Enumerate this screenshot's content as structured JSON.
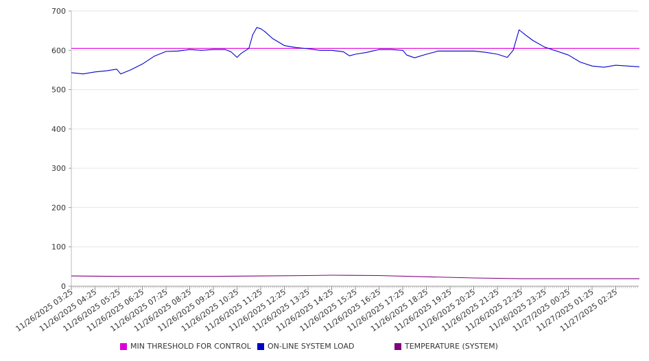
{
  "chart_data": {
    "type": "line",
    "ylim": [
      0,
      700
    ],
    "yticks": [
      0,
      100,
      200,
      300,
      400,
      500,
      600,
      700
    ],
    "grid": true,
    "legend_position": "bottom",
    "xticks": [
      "11/26/2025 03:25",
      "11/26/2025 04:25",
      "11/26/2025 05:25",
      "11/26/2025 06:25",
      "11/26/2025 07:25",
      "11/26/2025 08:25",
      "11/26/2025 09:25",
      "11/26/2025 10:25",
      "11/26/2025 11:25",
      "11/26/2025 12:25",
      "11/26/2025 13:25",
      "11/26/2025 14:25",
      "11/26/2025 15:25",
      "11/26/2025 16:25",
      "11/26/2025 17:25",
      "11/26/2025 18:25",
      "11/26/2025 19:25",
      "11/26/2025 20:25",
      "11/26/2025 21:25",
      "11/26/2025 22:25",
      "11/26/2025 23:25",
      "11/27/2025 00:25",
      "11/27/2025 01:25",
      "11/27/2025 02:25"
    ],
    "series": [
      {
        "name": "MIN THRESHOLD FOR CONTROL",
        "color": "#dd00dd",
        "x": [
          "11/26/2025 03:25",
          "11/27/2025 03:25"
        ],
        "values": [
          605,
          605
        ]
      },
      {
        "name": "ON-LINE SYSTEM LOAD",
        "color": "#0000cc",
        "x": [
          "11/26/2025 03:25",
          "11/26/2025 03:55",
          "11/26/2025 04:25",
          "11/26/2025 04:55",
          "11/26/2025 05:20",
          "11/26/2025 05:30",
          "11/26/2025 05:55",
          "11/26/2025 06:25",
          "11/26/2025 06:55",
          "11/26/2025 07:25",
          "11/26/2025 07:55",
          "11/26/2025 08:25",
          "11/26/2025 08:55",
          "11/26/2025 09:25",
          "11/26/2025 09:55",
          "11/26/2025 10:10",
          "11/26/2025 10:25",
          "11/26/2025 10:35",
          "11/26/2025 10:55",
          "11/26/2025 11:05",
          "11/26/2025 11:15",
          "11/26/2025 11:25",
          "11/26/2025 11:35",
          "11/26/2025 11:55",
          "11/26/2025 12:25",
          "11/26/2025 12:55",
          "11/26/2025 13:25",
          "11/26/2025 13:55",
          "11/26/2025 14:25",
          "11/26/2025 14:55",
          "11/26/2025 15:10",
          "11/26/2025 15:25",
          "11/26/2025 15:55",
          "11/26/2025 16:25",
          "11/26/2025 16:55",
          "11/26/2025 17:25",
          "11/26/2025 17:35",
          "11/26/2025 17:55",
          "11/26/2025 18:25",
          "11/26/2025 18:55",
          "11/26/2025 19:25",
          "11/26/2025 19:55",
          "11/26/2025 20:25",
          "11/26/2025 20:55",
          "11/26/2025 21:25",
          "11/26/2025 21:50",
          "11/26/2025 22:05",
          "11/26/2025 22:20",
          "11/26/2025 22:35",
          "11/26/2025 22:55",
          "11/26/2025 23:25",
          "11/26/2025 23:55",
          "11/27/2025 00:25",
          "11/27/2025 00:55",
          "11/27/2025 01:25",
          "11/27/2025 01:55",
          "11/27/2025 02:25",
          "11/27/2025 02:55",
          "11/27/2025 03:25"
        ],
        "values": [
          543,
          540,
          545,
          548,
          552,
          540,
          550,
          565,
          585,
          597,
          598,
          602,
          600,
          602,
          602,
          596,
          582,
          592,
          605,
          640,
          658,
          655,
          648,
          630,
          612,
          607,
          604,
          600,
          600,
          596,
          586,
          590,
          595,
          602,
          602,
          600,
          588,
          581,
          590,
          598,
          598,
          598,
          598,
          595,
          590,
          582,
          600,
          652,
          640,
          625,
          608,
          598,
          588,
          570,
          560,
          557,
          562,
          560,
          558
        ]
      },
      {
        "name": "TEMPERATURE (SYSTEM)",
        "color": "#800080",
        "x": [
          "11/26/2025 03:25",
          "11/26/2025 05:25",
          "11/26/2025 09:25",
          "11/26/2025 11:25",
          "11/26/2025 13:25",
          "11/26/2025 14:25",
          "11/26/2025 16:25",
          "11/26/2025 18:25",
          "11/26/2025 20:25",
          "11/26/2025 22:25",
          "11/27/2025 00:25",
          "11/27/2025 03:25"
        ],
        "values": [
          26,
          25,
          25,
          26,
          27,
          28,
          27,
          24,
          21,
          19,
          19,
          19
        ]
      }
    ]
  }
}
